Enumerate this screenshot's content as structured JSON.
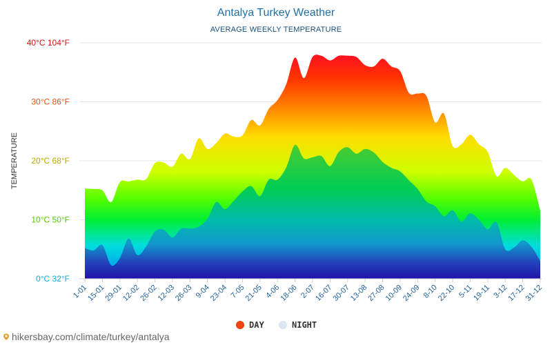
{
  "header": {
    "title": "Antalya Turkey Weather",
    "subtitle": "AVERAGE WEEKLY TEMPERATURE"
  },
  "source": {
    "text": "hikersbay.com/climate/turkey/antalya"
  },
  "legend": {
    "day_label": "DAY",
    "night_label": "NIGHT",
    "day_color": "#ee4411",
    "night_color": "#dde6ee"
  },
  "chart_data": {
    "type": "area",
    "ylabel": "TEMPERATURE",
    "ylim": [
      0,
      40
    ],
    "y_ticks": [
      {
        "value": 40,
        "label": "40°C 104°F",
        "color": "#dd1111"
      },
      {
        "value": 30,
        "label": "30°C 86°F",
        "color": "#dd5511"
      },
      {
        "value": 20,
        "label": "20°C 68°F",
        "color": "#bbaa00"
      },
      {
        "value": 10,
        "label": "10°C 50°F",
        "color": "#55cc00"
      },
      {
        "value": 0,
        "label": "0°C 32°F",
        "color": "#11aadd"
      }
    ],
    "x_labels": [
      "1-01",
      "15-01",
      "29-01",
      "12-02",
      "26-02",
      "12-03",
      "26-03",
      "9-04",
      "23-04",
      "7-05",
      "21-05",
      "4-06",
      "18-06",
      "2-07",
      "16-07",
      "30-07",
      "13-08",
      "27-08",
      "10-09",
      "24-09",
      "8-10",
      "22-10",
      "5-11",
      "19-11",
      "3-12",
      "17-12",
      "31-12"
    ],
    "grid": "horizontal",
    "legend_position": "bottom-center",
    "series": [
      {
        "name": "DAY",
        "values": [
          15.3,
          15.2,
          15.0,
          13.0,
          16.4,
          16.5,
          16.8,
          16.9,
          19.6,
          19.7,
          19.0,
          21.2,
          20.3,
          23.8,
          22.0,
          23.0,
          24.6,
          24.1,
          24.3,
          26.9,
          26.0,
          28.8,
          30.3,
          33.0,
          37.5,
          34.0,
          37.6,
          37.8,
          37.0,
          37.8,
          37.8,
          37.6,
          36.2,
          36.0,
          37.3,
          36.0,
          35.2,
          31.5,
          31.4,
          31.0,
          26.5,
          28.0,
          22.5,
          22.8,
          24.4,
          22.8,
          21.5,
          17.4,
          18.8,
          17.6,
          16.5,
          16.8,
          11.5
        ]
      },
      {
        "name": "NIGHT",
        "values": [
          5.2,
          4.8,
          5.7,
          2.3,
          3.5,
          6.8,
          4.0,
          5.5,
          8.0,
          8.3,
          7.0,
          8.5,
          8.5,
          8.8,
          10.2,
          13.0,
          11.8,
          13.2,
          14.8,
          15.7,
          14.0,
          16.8,
          16.8,
          18.9,
          22.7,
          20.4,
          20.6,
          20.8,
          19.1,
          21.5,
          22.3,
          21.2,
          22.0,
          21.4,
          19.8,
          18.8,
          18.2,
          16.7,
          15.2,
          13.1,
          12.3,
          10.6,
          11.6,
          9.7,
          11.1,
          10.0,
          8.4,
          9.6,
          5.0,
          5.3,
          6.5,
          5.4,
          3.0
        ]
      }
    ]
  }
}
